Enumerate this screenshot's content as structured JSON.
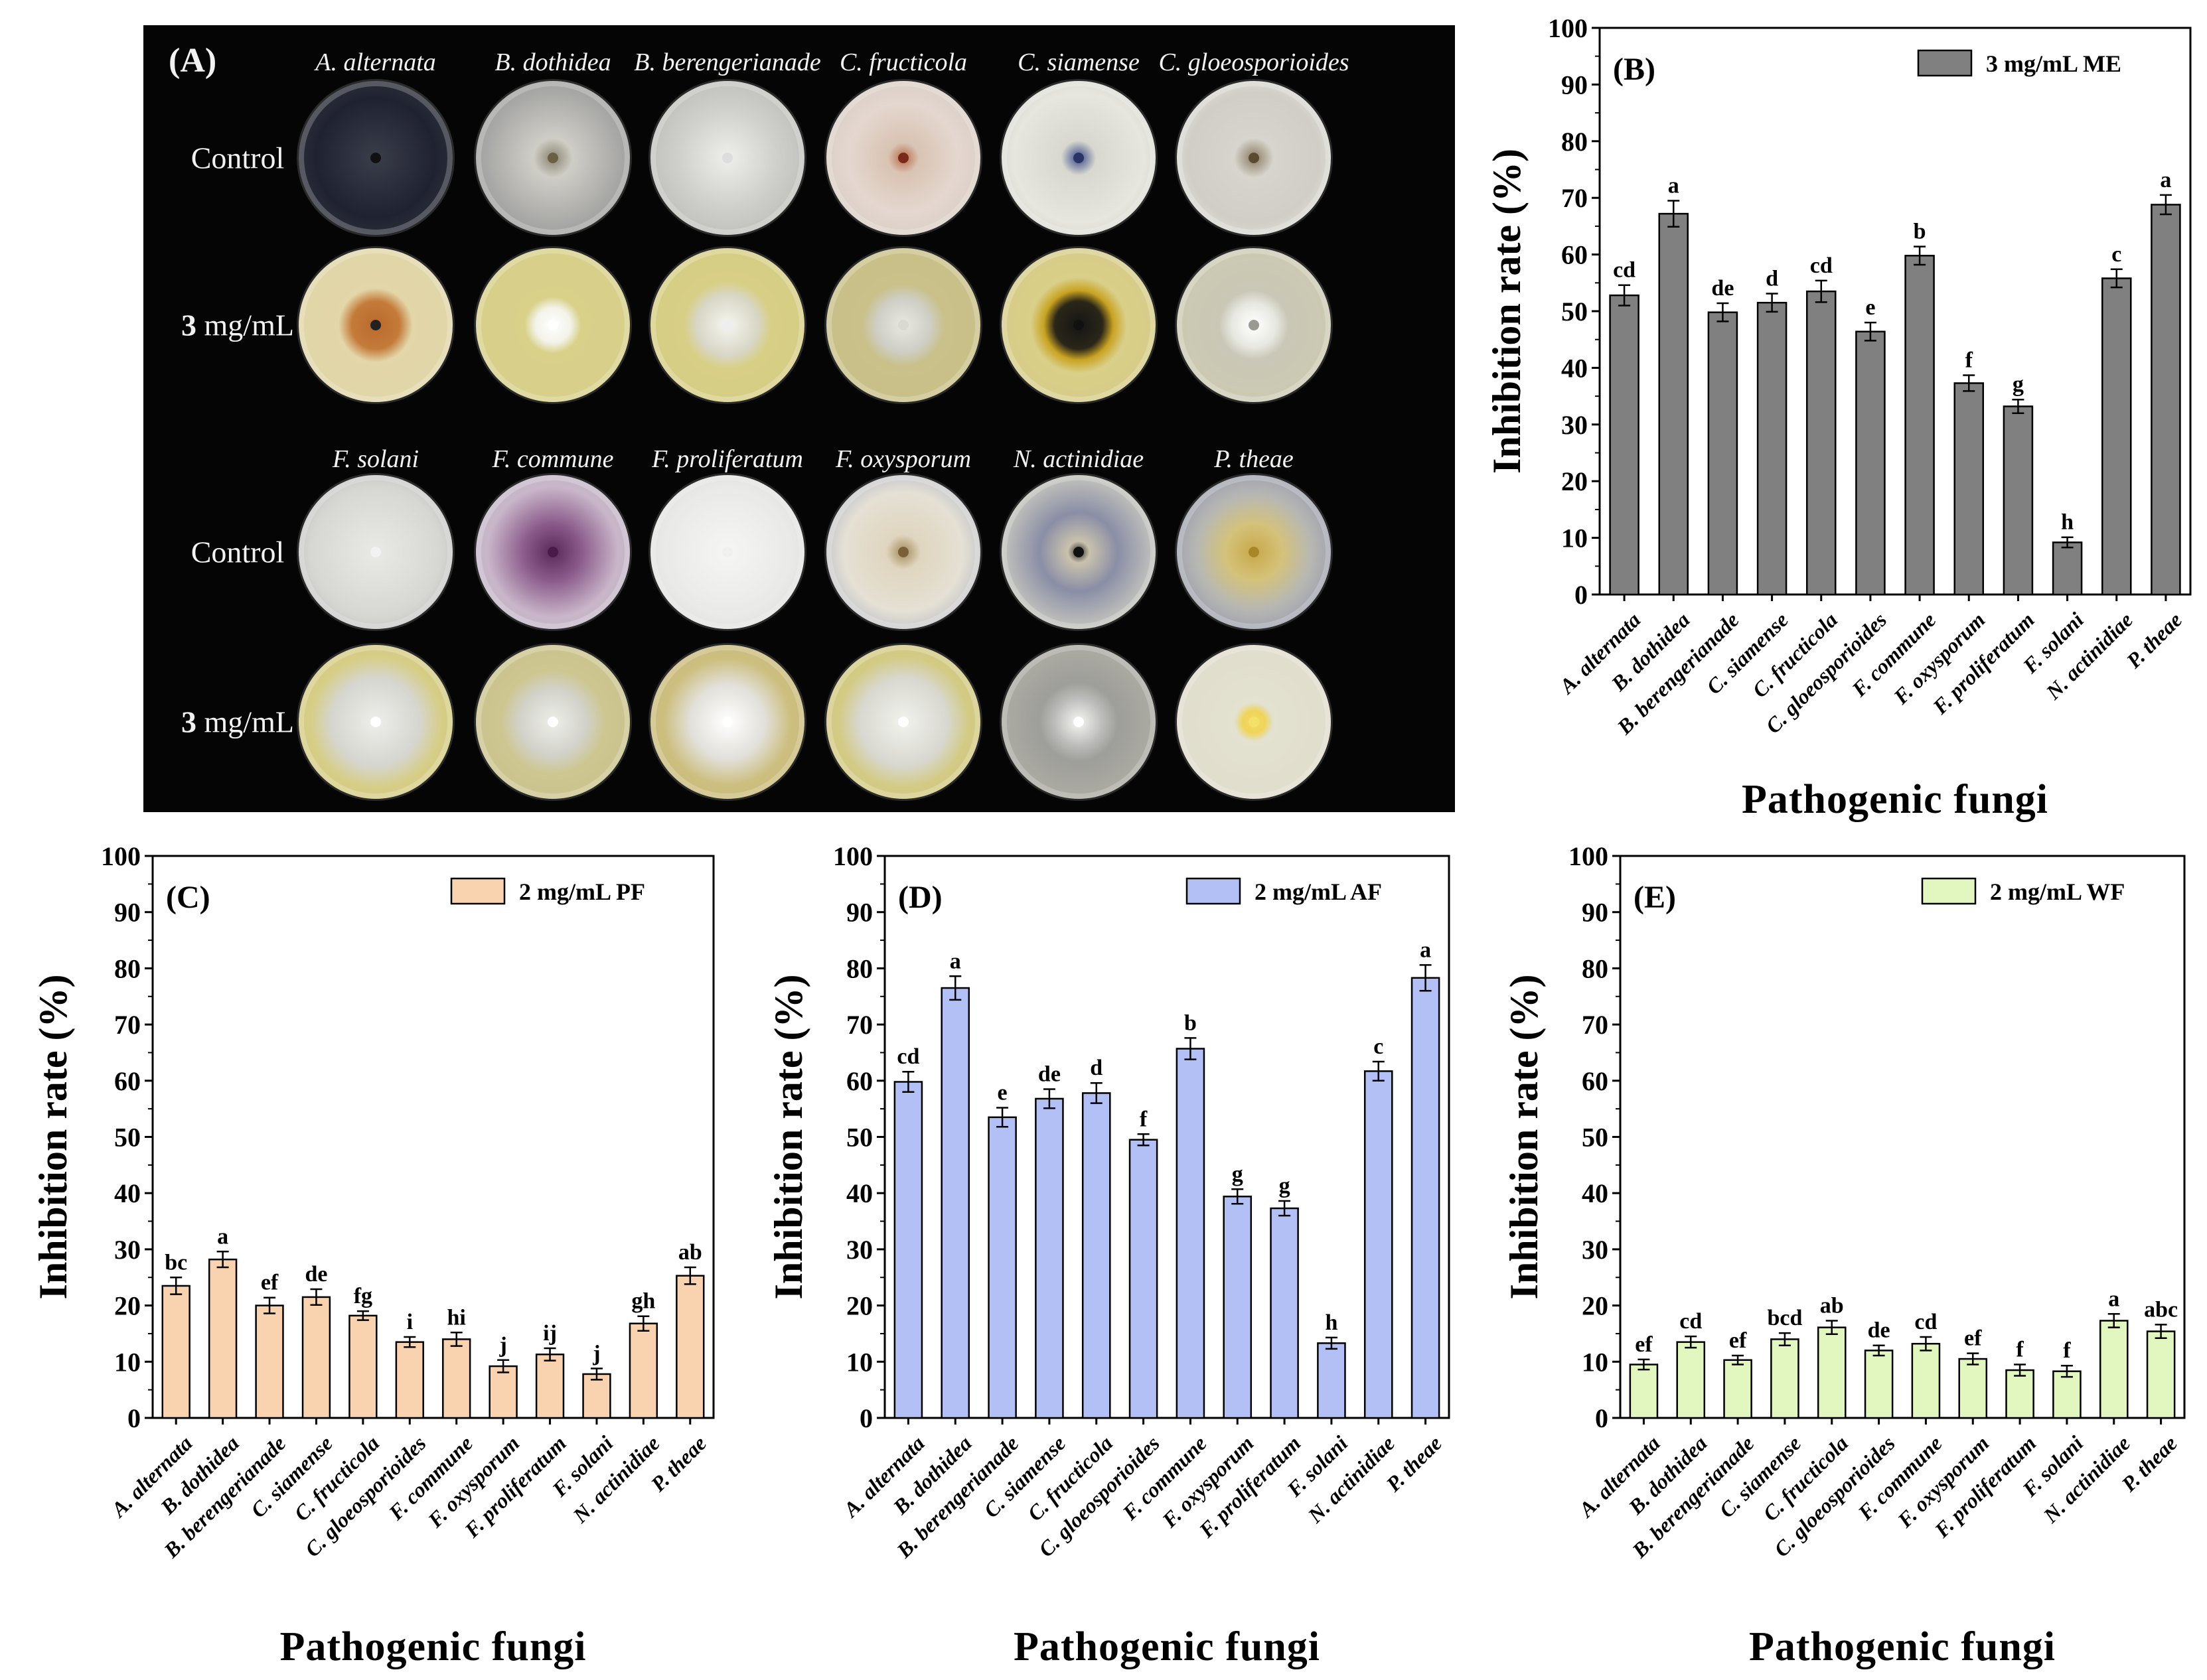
{
  "panelA": {
    "label": "(A)",
    "row_labels": {
      "control": "Control",
      "treated_bold": "3",
      "treated_rest": " mg/mL"
    },
    "top_species": [
      "A. alternata",
      "B. dothidea",
      "B. berengerianade",
      "C. fructicola",
      "C. siamense",
      "C. gloeosporioides"
    ],
    "bottom_species": [
      "F. solani",
      "F. commune",
      "F. proliferatum",
      "F. oxysporum",
      "N. actinidiae",
      "P. theae"
    ],
    "dishes_top": [
      {
        "control": {
          "bg": "radial-gradient(circle, #3a3d4a 0%, #1f2230 55%, #2c2f3a 75%, #c9c6b8 82%, #8a8a86 100%)",
          "spot": "#111111"
        },
        "treated": {
          "bg": "radial-gradient(circle, #b96a2c 0%, #c47b3a 22%, #e3d6a8 34%, #ddd5a8 100%)",
          "spot": "#222222"
        }
      },
      {
        "control": {
          "bg": "radial-gradient(circle, #8a8470 0%, #cfcdc6 18%, #a9a9a7 60%, #8e8e8c 100%)",
          "spot": "#6a6044"
        },
        "treated": {
          "bg": "radial-gradient(circle, #ffffff 0%, #f3f3ea 16%, #d9d18a 26%, #d6ce8a 100%)",
          "spot": "#ffffff"
        }
      },
      {
        "control": {
          "bg": "radial-gradient(circle, #eeeeea 0%, #cfcfcb 45%, #b2b2ae 100%)",
          "spot": "#dddddd"
        },
        "treated": {
          "bg": "radial-gradient(circle, #f6f6f0 0%, #d8d6c6 28%, #d8cf86 40%, #d4cb84 100%)",
          "spot": "#eeeeee"
        }
      },
      {
        "control": {
          "bg": "radial-gradient(circle, #b76a4a 0%, #d9c3b3 14%, #e4d7cf 50%, #cfc4bb 100%)",
          "spot": "#7a2a1a"
        },
        "treated": {
          "bg": "radial-gradient(circle, #e8e8e2 0%, #cfcfc7 24%, #c9c08a 38%, #c8bf86 100%)",
          "spot": "#d9d9d2"
        }
      },
      {
        "control": {
          "bg": "radial-gradient(circle, #3a4a88 0%, #d8d8d0 16%, #e6e6df 60%, #c4c4bc 100%)",
          "spot": "#2a3366"
        },
        "treated": {
          "bg": "radial-gradient(circle, #151515 0%, #2a2618 22%, #c9a322 32%, #d9cf88 44%, #d3c98a 100%)",
          "spot": "#111111"
        }
      },
      {
        "control": {
          "bg": "radial-gradient(circle, #8a7a60 0%, #d6d4cc 18%, #d0cec6 60%, #e6e6e2 85%, #a6a6a2 100%)",
          "spot": "#5a4a30"
        },
        "treated": {
          "bg": "radial-gradient(circle, #ffffff 0%, #e8e8e2 20%, #c9c7b6 32%, #cfcbb0 100%)",
          "spot": "#9a9a92"
        }
      }
    ],
    "dishes_bottom": [
      {
        "control": {
          "bg": "radial-gradient(circle, #e9e9e5 0%, #d6d6d2 60%, #a8a8ae 100%)",
          "spot": "#f2f2f2"
        },
        "treated": {
          "bg": "radial-gradient(circle, #eeeeea 0%, #d6d6d0 40%, #d6cd86 60%, #d0c780 100%)",
          "spot": "#ffffff"
        }
      },
      {
        "control": {
          "bg": "radial-gradient(circle, #5a2a5a 0%, #8a5a8a 26%, #c9b6c9 60%, #b9b6c4 100%)",
          "spot": "#4a1a4a"
        },
        "treated": {
          "bg": "radial-gradient(circle, #eeeeea 0%, #d2d2ca 30%, #cdc690 48%, #c8c08a 100%)",
          "spot": "#ffffff"
        }
      },
      {
        "control": {
          "bg": "radial-gradient(circle, #f5f5f3 0%, #e9e9e7 60%, #d2d2d0 100%)",
          "spot": "#f0f0f0"
        },
        "treated": {
          "bg": "radial-gradient(circle, #ffffff 0%, #e2e0da 34%, #cdbf80 58%, #c2b470 100%)",
          "spot": "#ffffff"
        }
      },
      {
        "control": {
          "bg": "radial-gradient(circle, #a48a5a 0%, #e0d6c0 16%, #e4e0d4 55%, #9aa0c0 100%)",
          "spot": "#7a6038"
        },
        "treated": {
          "bg": "radial-gradient(circle, #f2f2ee 0%, #d8d8d0 40%, #d3ca84 60%, #cec57e 100%)",
          "spot": "#ffffff"
        }
      },
      {
        "control": {
          "bg": "radial-gradient(circle, #2a2a2a 0%, #c9c2ad 10%, #8a8ea6 36%, #c2c2bc 70%, #9a9a98 100%)",
          "spot": "#111111"
        },
        "treated": {
          "bg": "radial-gradient(circle, #f5f5f2 0%, #bcbcba 22%, #9e9e9a 36%, #b8b6aa 100%)",
          "spot": "#ffffff"
        }
      },
      {
        "control": {
          "bg": "radial-gradient(circle, #c9a84a 0%, #d4c27a 26%, #b8b8b2 52%, #8f95ae 85%, #a6a6a6 100%)",
          "spot": "#a8872a"
        },
        "treated": {
          "bg": "radial-gradient(circle, #f3dc6a 0%, #efd458 10%, #e3e1d0 18%, #dedbca 100%)",
          "spot": "#f5e06a"
        }
      }
    ]
  },
  "chart_data": [
    {
      "panel": "(B)",
      "type": "bar",
      "legend": "3 mg/mL ME",
      "bar_color": "#808080",
      "xlabel": "Pathogenic fungi",
      "ylabel": "Inhibition rate (%)",
      "ylim": [
        0,
        100
      ],
      "yticks": [
        "0",
        "10",
        "20",
        "30",
        "40",
        "50",
        "60",
        "70",
        "80",
        "90",
        "100"
      ],
      "categories": [
        "A. alternata",
        "B. dothidea",
        "B. berengerianade",
        "C. siamense",
        "C. fructicola",
        "C. gloeosporioides",
        "F. commune",
        "F. oxysporum",
        "F. proliferatum",
        "F. solani",
        "N. actinidiae",
        "P. theae"
      ],
      "values": [
        52.8,
        67.2,
        49.8,
        51.5,
        53.5,
        46.4,
        59.8,
        37.3,
        33.2,
        9.2,
        55.8,
        68.8
      ],
      "errors": [
        1.8,
        2.3,
        1.6,
        1.6,
        1.9,
        1.6,
        1.6,
        1.4,
        1.2,
        0.9,
        1.6,
        1.7
      ],
      "letters": [
        "cd",
        "a",
        "de",
        "d",
        "cd",
        "e",
        "b",
        "f",
        "g",
        "h",
        "c",
        "a"
      ]
    },
    {
      "panel": "(C)",
      "type": "bar",
      "legend": "2 mg/mL PF",
      "bar_color": "#f9d2b0",
      "xlabel": "Pathogenic fungi",
      "ylabel": "Inhibition rate (%)",
      "ylim": [
        0,
        100
      ],
      "yticks": [
        "0",
        "10",
        "20",
        "30",
        "40",
        "50",
        "60",
        "70",
        "80",
        "90",
        "100"
      ],
      "categories": [
        "A. alternata",
        "B. dothidea",
        "B. berengerianade",
        "C. siamense",
        "C. fructicola",
        "C. gloeosporioides",
        "F. commune",
        "F. oxysporum",
        "F. proliferatum",
        "F. solani",
        "N. actinidiae",
        "P. theae"
      ],
      "values": [
        23.5,
        28.2,
        20.0,
        21.5,
        18.2,
        13.5,
        14.0,
        9.2,
        11.3,
        7.8,
        16.8,
        25.3
      ],
      "errors": [
        1.5,
        1.4,
        1.4,
        1.4,
        0.8,
        0.9,
        1.2,
        1.1,
        1.1,
        1.0,
        1.3,
        1.5
      ],
      "letters": [
        "bc",
        "a",
        "ef",
        "de",
        "fg",
        "i",
        "hi",
        "j",
        "ij",
        "j",
        "gh",
        "ab"
      ]
    },
    {
      "panel": "(D)",
      "type": "bar",
      "legend": "2 mg/mL AF",
      "bar_color": "#b2c0f6",
      "xlabel": "Pathogenic fungi",
      "ylabel": "Inhibition rate (%)",
      "ylim": [
        0,
        100
      ],
      "yticks": [
        "0",
        "10",
        "20",
        "30",
        "40",
        "50",
        "60",
        "70",
        "80",
        "90",
        "100"
      ],
      "categories": [
        "A. alternata",
        "B. dothidea",
        "B. berengerianade",
        "C. siamense",
        "C. fructicola",
        "C. gloeosporioides",
        "F. commune",
        "F. oxysporum",
        "F. proliferatum",
        "F. solani",
        "N. actinidiae",
        "P. theae"
      ],
      "values": [
        59.8,
        76.5,
        53.5,
        56.8,
        57.8,
        49.5,
        65.7,
        39.4,
        37.3,
        13.3,
        61.7,
        78.3
      ],
      "errors": [
        1.8,
        2.1,
        1.7,
        1.7,
        1.8,
        1.0,
        1.9,
        1.3,
        1.3,
        1.0,
        1.7,
        2.3
      ],
      "letters": [
        "cd",
        "a",
        "e",
        "de",
        "d",
        "f",
        "b",
        "g",
        "g",
        "h",
        "c",
        "a"
      ]
    },
    {
      "panel": "(E)",
      "type": "bar",
      "legend": "2 mg/mL WF",
      "bar_color": "#e2f6c0",
      "xlabel": "Pathogenic fungi",
      "ylabel": "Inhibition rate (%)",
      "ylim": [
        0,
        100
      ],
      "yticks": [
        "0",
        "10",
        "20",
        "30",
        "40",
        "50",
        "60",
        "70",
        "80",
        "90",
        "100"
      ],
      "categories": [
        "A. alternata",
        "B. dothidea",
        "B. berengerianade",
        "C. siamense",
        "C. fructicola",
        "C. gloeosporioides",
        "F. commune",
        "F. oxysporum",
        "F. proliferatum",
        "F. solani",
        "N. actinidiae",
        "P. theae"
      ],
      "values": [
        9.5,
        13.5,
        10.3,
        14.0,
        16.1,
        12.0,
        13.2,
        10.5,
        8.5,
        8.3,
        17.3,
        15.4
      ],
      "errors": [
        0.9,
        1.0,
        0.8,
        1.1,
        1.2,
        0.9,
        1.2,
        1.0,
        1.0,
        1.0,
        1.2,
        1.2
      ],
      "letters": [
        "ef",
        "cd",
        "ef",
        "bcd",
        "ab",
        "de",
        "cd",
        "ef",
        "f",
        "f",
        "a",
        "abc"
      ]
    }
  ]
}
